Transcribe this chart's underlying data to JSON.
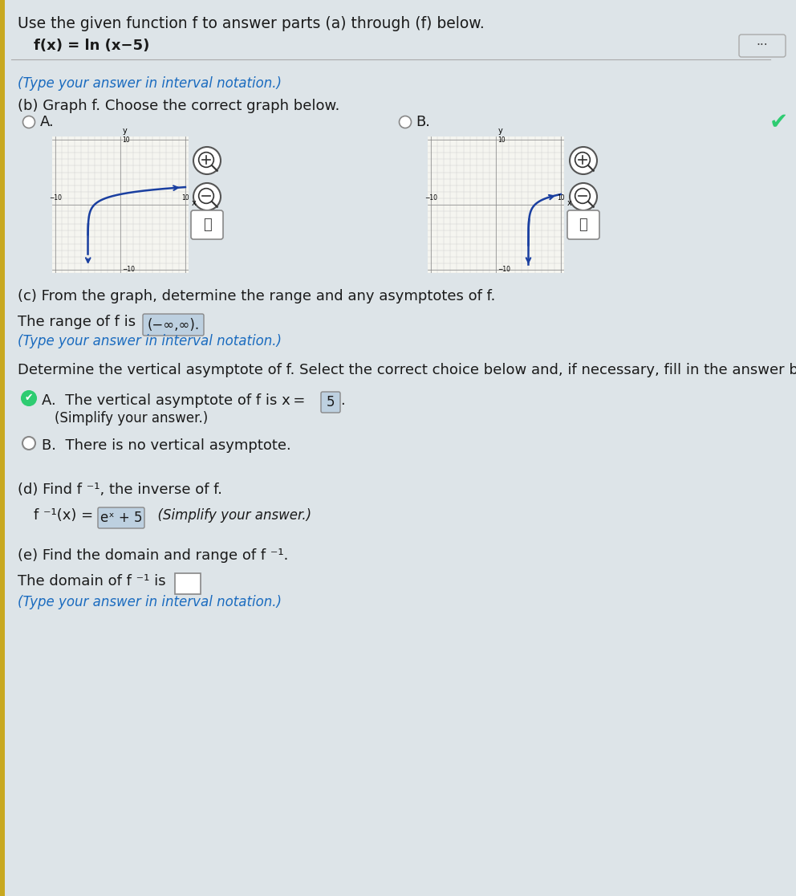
{
  "title_line1": "Use the given function f to answer parts (a) through (f) below.",
  "function_def": "f(x) = ln (x−5)",
  "bg_color": "#dde4e8",
  "text_color": "#1a1a1a",
  "section_a_note": "(Type your answer in interval notation.)",
  "section_b_title": "(b) Graph f. Choose the correct graph below.",
  "graph_A_label": "A.",
  "graph_B_label": "B.",
  "graph_A_color": "#1a3fa0",
  "graph_B_color": "#1a3fa0",
  "section_c_title": "(c) From the graph, determine the range and any asymptotes of f.",
  "range_value": "(−∞,∞)",
  "range_note": "(Type your answer in interval notation.)",
  "asymptote_intro": "Determine the vertical asymptote of f. Select the correct choice below and, if necessary, fill in the answer bo",
  "asymptote_A_text": "The vertical asymptote of f is x = ",
  "asymptote_A_val": "5",
  "asymptote_A_note": "(Simplify your answer.)",
  "asymptote_B_text": "There is no vertical asymptote.",
  "section_d_title": "(d) Find f ⁻¹, the inverse of f.",
  "inverse_lhs": "f ⁻¹(x) = ",
  "inverse_val": "eˣ 5",
  "inverse_note": "(Simplify your answer.)",
  "section_e_title": "(e) Find the domain and range of f ⁻¹.",
  "domain_text": "The domain of f ⁻¹ is",
  "domain_note": "(Type your answer in interval notation.)",
  "link_color": "#1a6bbf",
  "highlight_color": "#bdd0e0",
  "box_border_color": "#888888",
  "yellow_bar_color": "#c8a820",
  "grid_color": "#cccccc",
  "graph_bg": "#f5f5f0"
}
